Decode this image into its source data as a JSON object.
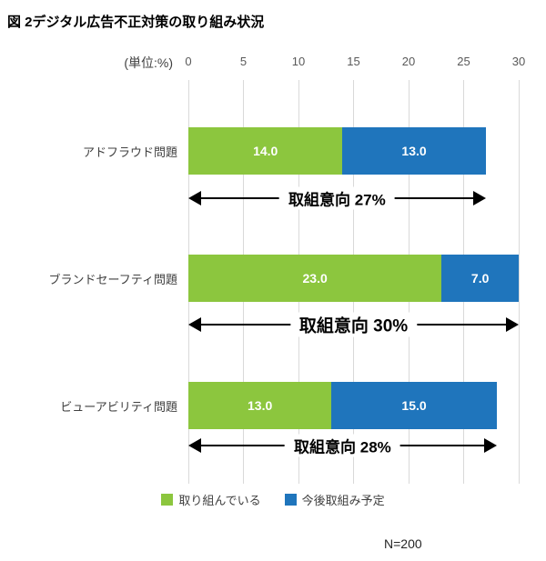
{
  "title": "図 2デジタル広告不正対策の取り組み状況",
  "unit_label": "(単位:%)",
  "n_label": "N=200",
  "colors": {
    "series1": "#8CC63E",
    "series2": "#1F75BC",
    "gridline": "#d9d9d9",
    "arrow": "#000000"
  },
  "chart_data": {
    "type": "bar",
    "orientation": "horizontal",
    "stacked": true,
    "title": "図 2デジタル広告不正対策の取り組み状況",
    "xlabel": "(単位:%)",
    "xlim": [
      0,
      30
    ],
    "xticks": [
      0,
      5,
      10,
      15,
      20,
      25,
      30
    ],
    "grid": true,
    "legend_position": "bottom",
    "categories": [
      "アドフラウド問題",
      "ブランドセーフティ問題",
      "ビューアビリティ問題"
    ],
    "series": [
      {
        "name": "取り組んでいる",
        "color": "#8CC63E",
        "values": [
          14,
          23,
          13
        ],
        "value_labels": [
          "14.0",
          "23.0",
          "13.0"
        ]
      },
      {
        "name": "今後取組み予定",
        "color": "#1F75BC",
        "values": [
          13,
          7,
          15
        ],
        "value_labels": [
          "13.0",
          "7.0",
          "15.0"
        ]
      }
    ],
    "totals": [
      27,
      30,
      28
    ],
    "annotations": [
      "取組意向 27%",
      "取組意向 30%",
      "取組意向 28%"
    ]
  }
}
